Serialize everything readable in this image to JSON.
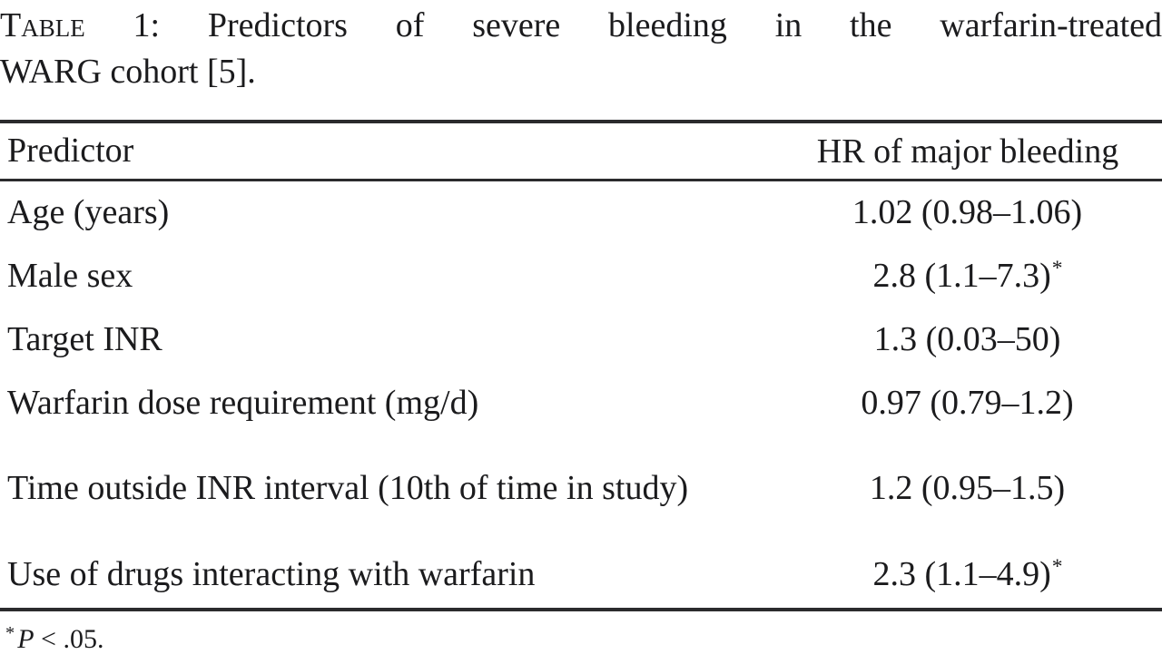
{
  "caption": {
    "label": "Table",
    "line1_rest": " 1: Predictors of severe bleeding in the warfarin-treated",
    "line2": "WARG cohort [5]."
  },
  "table": {
    "columns": {
      "predictor": "Predictor",
      "hr": "HR of major bleeding"
    },
    "rows": [
      {
        "predictor": "Age (years)",
        "hr": "1.02 (0.98–1.06)",
        "sup": ""
      },
      {
        "predictor": "Male sex",
        "hr": "2.8 (1.1–7.3)",
        "sup": "*"
      },
      {
        "predictor": "Target INR",
        "hr": "1.3 (0.03–50)",
        "sup": ""
      },
      {
        "predictor": "Warfarin dose requirement (mg/d)",
        "hr": "0.97 (0.79–1.2)",
        "sup": ""
      },
      {
        "predictor": "Time outside INR interval (10th of time in study)",
        "hr": "1.2 (0.95–1.5)",
        "sup": ""
      },
      {
        "predictor": "Use of drugs interacting with warfarin",
        "hr": "2.3 (1.1–4.9)",
        "sup": "*"
      }
    ]
  },
  "footnote": {
    "sup": "*",
    "p": "P",
    "rest": " < .05."
  },
  "colors": {
    "text": "#1b1b1d",
    "rule": "#2b2b2d",
    "background": "#ffffff"
  }
}
